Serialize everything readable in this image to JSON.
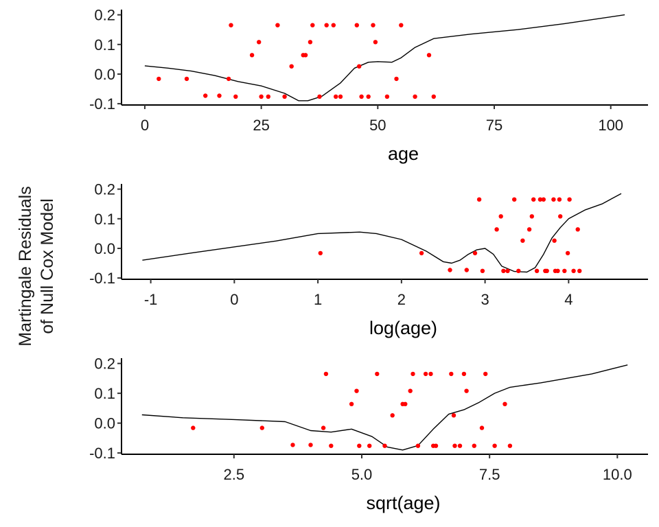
{
  "figure": {
    "ylabel_line1": "Martingale Residuals",
    "ylabel_line2": "of Null Cox Model"
  },
  "chart_data": [
    {
      "type": "scatter",
      "xlabel": "age",
      "ylabel": "",
      "xlim": [
        -5,
        108
      ],
      "ylim": [
        -0.102,
        0.213
      ],
      "xticks": [
        0,
        25,
        50,
        75,
        100
      ],
      "xtick_labels": [
        "0",
        "25",
        "50",
        "75",
        "100"
      ],
      "yticks": [
        -0.1,
        0.0,
        0.1,
        0.2
      ],
      "ytick_labels": [
        "-0.1",
        "0.0",
        "0.1",
        "0.2"
      ],
      "point_color": "#ff0000",
      "line_color": "#000000",
      "grid": false,
      "points": [
        [
          3,
          -0.016
        ],
        [
          9,
          -0.016
        ],
        [
          13,
          -0.073
        ],
        [
          16,
          -0.073
        ],
        [
          18,
          -0.016
        ],
        [
          18.5,
          0.165
        ],
        [
          19.5,
          -0.076
        ],
        [
          23,
          0.064
        ],
        [
          24.5,
          0.108
        ],
        [
          25,
          -0.076
        ],
        [
          26.5,
          -0.076
        ],
        [
          28.5,
          0.165
        ],
        [
          30,
          -0.076
        ],
        [
          31.5,
          0.026
        ],
        [
          34,
          0.064
        ],
        [
          34.5,
          0.064
        ],
        [
          35.5,
          0.108
        ],
        [
          36,
          0.165
        ],
        [
          37.5,
          -0.076
        ],
        [
          39,
          0.165
        ],
        [
          40.5,
          0.165
        ],
        [
          41,
          -0.076
        ],
        [
          42,
          -0.076
        ],
        [
          45.5,
          0.165
        ],
        [
          46,
          0.026
        ],
        [
          46.5,
          -0.076
        ],
        [
          48,
          -0.076
        ],
        [
          49,
          0.165
        ],
        [
          49.5,
          0.108
        ],
        [
          52,
          -0.076
        ],
        [
          54,
          -0.016
        ],
        [
          55,
          0.165
        ],
        [
          58,
          -0.076
        ],
        [
          61,
          0.064
        ],
        [
          62,
          -0.076
        ]
      ],
      "smooth": [
        [
          0,
          0.028
        ],
        [
          5,
          0.02
        ],
        [
          10,
          0.01
        ],
        [
          15,
          -0.005
        ],
        [
          20,
          -0.025
        ],
        [
          25,
          -0.04
        ],
        [
          30,
          -0.065
        ],
        [
          33,
          -0.09
        ],
        [
          35,
          -0.09
        ],
        [
          38,
          -0.075
        ],
        [
          42,
          -0.03
        ],
        [
          45,
          0.02
        ],
        [
          48,
          0.04
        ],
        [
          50,
          0.042
        ],
        [
          53,
          0.04
        ],
        [
          55,
          0.055
        ],
        [
          58,
          0.09
        ],
        [
          62,
          0.12
        ],
        [
          70,
          0.135
        ],
        [
          80,
          0.15
        ],
        [
          90,
          0.17
        ],
        [
          103,
          0.2
        ]
      ]
    },
    {
      "type": "scatter",
      "xlabel": "log(age)",
      "ylabel": "",
      "xlim": [
        -1.35,
        4.95
      ],
      "ylim": [
        -0.102,
        0.213
      ],
      "xticks": [
        -1,
        0,
        1,
        2,
        3,
        4
      ],
      "xtick_labels": [
        "-1",
        "0",
        "1",
        "2",
        "3",
        "4"
      ],
      "yticks": [
        -0.1,
        0.0,
        0.1,
        0.2
      ],
      "ytick_labels": [
        "-0.1",
        "0.0",
        "0.1",
        "0.2"
      ],
      "point_color": "#ff0000",
      "line_color": "#000000",
      "grid": false,
      "points": [
        [
          1.03,
          -0.016
        ],
        [
          2.24,
          -0.016
        ],
        [
          2.58,
          -0.073
        ],
        [
          2.78,
          -0.073
        ],
        [
          2.88,
          -0.016
        ],
        [
          2.93,
          0.165
        ],
        [
          2.97,
          -0.076
        ],
        [
          3.14,
          0.064
        ],
        [
          3.19,
          0.108
        ],
        [
          3.22,
          -0.076
        ],
        [
          3.27,
          -0.076
        ],
        [
          3.35,
          0.165
        ],
        [
          3.4,
          -0.076
        ],
        [
          3.45,
          0.026
        ],
        [
          3.53,
          0.064
        ],
        [
          3.56,
          0.108
        ],
        [
          3.58,
          0.165
        ],
        [
          3.62,
          -0.076
        ],
        [
          3.66,
          0.165
        ],
        [
          3.7,
          0.165
        ],
        [
          3.72,
          -0.076
        ],
        [
          3.74,
          -0.076
        ],
        [
          3.82,
          0.165
        ],
        [
          3.83,
          0.026
        ],
        [
          3.84,
          -0.076
        ],
        [
          3.87,
          -0.076
        ],
        [
          3.89,
          0.165
        ],
        [
          3.9,
          0.108
        ],
        [
          3.95,
          -0.076
        ],
        [
          3.99,
          -0.016
        ],
        [
          4.01,
          0.165
        ],
        [
          4.06,
          -0.076
        ],
        [
          4.11,
          0.064
        ],
        [
          4.13,
          -0.076
        ]
      ],
      "smooth": [
        [
          -1.1,
          -0.04
        ],
        [
          -0.5,
          -0.015
        ],
        [
          0,
          0.005
        ],
        [
          0.5,
          0.025
        ],
        [
          1.0,
          0.05
        ],
        [
          1.5,
          0.055
        ],
        [
          1.7,
          0.05
        ],
        [
          2.0,
          0.03
        ],
        [
          2.3,
          -0.01
        ],
        [
          2.5,
          -0.045
        ],
        [
          2.6,
          -0.05
        ],
        [
          2.7,
          -0.04
        ],
        [
          2.8,
          -0.02
        ],
        [
          2.9,
          -0.005
        ],
        [
          3.0,
          0.0
        ],
        [
          3.1,
          -0.02
        ],
        [
          3.2,
          -0.06
        ],
        [
          3.35,
          -0.078
        ],
        [
          3.5,
          -0.08
        ],
        [
          3.6,
          -0.065
        ],
        [
          3.7,
          -0.02
        ],
        [
          3.8,
          0.035
        ],
        [
          3.9,
          0.07
        ],
        [
          4.0,
          0.1
        ],
        [
          4.2,
          0.13
        ],
        [
          4.4,
          0.15
        ],
        [
          4.63,
          0.185
        ]
      ]
    },
    {
      "type": "scatter",
      "xlabel": "sqrt(age)",
      "ylabel": "",
      "xlim": [
        0.3,
        10.6
      ],
      "ylim": [
        -0.102,
        0.213
      ],
      "xticks": [
        2.5,
        5.0,
        7.5,
        10.0
      ],
      "xtick_labels": [
        "2.5",
        "5.0",
        "7.5",
        "10.0"
      ],
      "yticks": [
        -0.1,
        0.0,
        0.1,
        0.2
      ],
      "ytick_labels": [
        "-0.1",
        "0.0",
        "0.1",
        "0.2"
      ],
      "point_color": "#ff0000",
      "line_color": "#000000",
      "grid": false,
      "points": [
        [
          1.7,
          -0.016
        ],
        [
          3.05,
          -0.016
        ],
        [
          3.65,
          -0.073
        ],
        [
          4.0,
          -0.073
        ],
        [
          4.25,
          -0.016
        ],
        [
          4.3,
          0.165
        ],
        [
          4.4,
          -0.076
        ],
        [
          4.8,
          0.064
        ],
        [
          4.9,
          0.108
        ],
        [
          4.95,
          -0.076
        ],
        [
          5.15,
          -0.076
        ],
        [
          5.3,
          0.165
        ],
        [
          5.45,
          -0.076
        ],
        [
          5.6,
          0.026
        ],
        [
          5.8,
          0.064
        ],
        [
          5.85,
          0.064
        ],
        [
          5.95,
          0.108
        ],
        [
          6.0,
          0.165
        ],
        [
          6.1,
          -0.076
        ],
        [
          6.25,
          0.165
        ],
        [
          6.35,
          0.165
        ],
        [
          6.4,
          -0.076
        ],
        [
          6.45,
          -0.076
        ],
        [
          6.75,
          0.165
        ],
        [
          6.8,
          0.026
        ],
        [
          6.82,
          -0.076
        ],
        [
          6.92,
          -0.076
        ],
        [
          7.0,
          0.165
        ],
        [
          7.05,
          0.108
        ],
        [
          7.2,
          -0.076
        ],
        [
          7.35,
          -0.016
        ],
        [
          7.42,
          0.165
        ],
        [
          7.6,
          -0.076
        ],
        [
          7.8,
          0.064
        ],
        [
          7.9,
          -0.076
        ]
      ],
      "smooth": [
        [
          0.7,
          0.028
        ],
        [
          1.5,
          0.018
        ],
        [
          2.5,
          0.012
        ],
        [
          3.5,
          0.005
        ],
        [
          4.0,
          -0.025
        ],
        [
          4.4,
          -0.03
        ],
        [
          4.8,
          -0.02
        ],
        [
          5.2,
          -0.045
        ],
        [
          5.5,
          -0.08
        ],
        [
          5.8,
          -0.09
        ],
        [
          6.1,
          -0.075
        ],
        [
          6.4,
          -0.02
        ],
        [
          6.7,
          0.03
        ],
        [
          7.0,
          0.045
        ],
        [
          7.3,
          0.07
        ],
        [
          7.6,
          0.1
        ],
        [
          7.9,
          0.12
        ],
        [
          8.5,
          0.135
        ],
        [
          9.5,
          0.165
        ],
        [
          10.2,
          0.195
        ]
      ]
    }
  ]
}
